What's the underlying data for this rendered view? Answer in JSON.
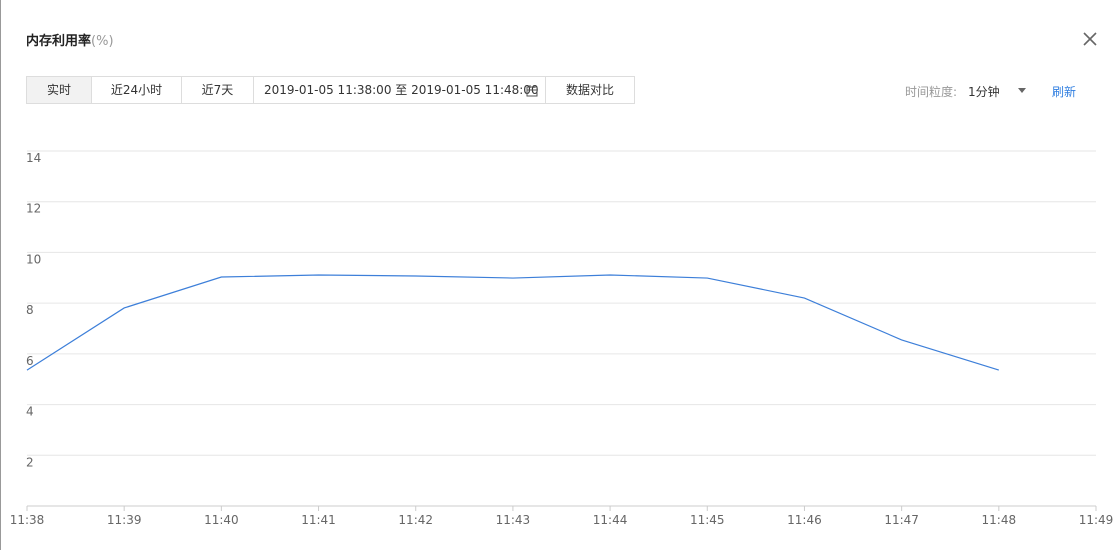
{
  "header": {
    "title": "内存利用率",
    "unit": "(%)"
  },
  "toolbar": {
    "ranges": [
      "实时",
      "近24小时",
      "近7天"
    ],
    "start": "2019-01-05 11:38:00",
    "separator": "至",
    "end": "2019-01-05 11:48:00",
    "compare": "数据对比",
    "granularity_label": "时间粒度:",
    "granularity": "1分钟",
    "refresh": "刷新"
  },
  "chart_data": {
    "type": "line",
    "categories": [
      "11:38",
      "11:39",
      "11:40",
      "11:41",
      "11:42",
      "11:43",
      "11:44",
      "11:45",
      "11:46",
      "11:47",
      "11:48",
      "11:49"
    ],
    "values": [
      5.36,
      7.81,
      9.03,
      9.11,
      9.07,
      8.99,
      9.11,
      8.99,
      8.2,
      6.55,
      5.36,
      null
    ],
    "color": "#3d7fd9",
    "ylim": [
      0,
      14
    ],
    "yticks": [
      2,
      4,
      6,
      8,
      10,
      12,
      14
    ],
    "grid": true
  }
}
